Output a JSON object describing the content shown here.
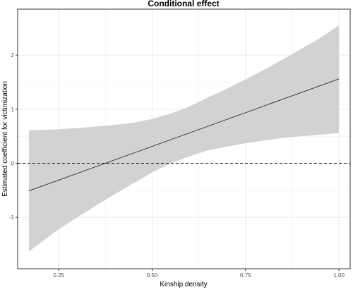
{
  "chart_data": {
    "type": "line",
    "title": "Conditional effect",
    "xlabel": "Kinship density",
    "ylabel": "Estimated coefficient for victimization",
    "xlim": [
      0.14,
      1.03
    ],
    "ylim": [
      -1.95,
      2.85
    ],
    "x_ticks": [
      {
        "value": 0.25,
        "label": "0.25"
      },
      {
        "value": 0.5,
        "label": "0.50"
      },
      {
        "value": 0.75,
        "label": "0.75"
      },
      {
        "value": 1.0,
        "label": "1.00"
      }
    ],
    "y_ticks": [
      {
        "value": -1,
        "label": "-1"
      },
      {
        "value": 0,
        "label": "0"
      },
      {
        "value": 1,
        "label": "1"
      },
      {
        "value": 2,
        "label": "2"
      }
    ],
    "grid": true,
    "reference_line": {
      "y": 0,
      "style": "dashed"
    },
    "series": [
      {
        "x": [
          0.17,
          1.0
        ],
        "y": [
          -0.51,
          1.56
        ]
      }
    ],
    "confidence_band": {
      "x": [
        0.17,
        0.25,
        0.3,
        0.35,
        0.4,
        0.45,
        0.5,
        0.55,
        0.6,
        0.65,
        0.7,
        0.75,
        0.8,
        0.85,
        0.9,
        0.95,
        1.0
      ],
      "lower": [
        -1.63,
        -1.22,
        -1.0,
        -0.78,
        -0.57,
        -0.37,
        -0.17,
        0.0,
        0.13,
        0.24,
        0.31,
        0.37,
        0.42,
        0.47,
        0.5,
        0.53,
        0.56
      ],
      "upper": [
        0.61,
        0.63,
        0.65,
        0.68,
        0.71,
        0.75,
        0.82,
        0.92,
        1.05,
        1.22,
        1.38,
        1.55,
        1.73,
        1.92,
        2.12,
        2.32,
        2.55
      ]
    },
    "colors": {
      "band": "#d2d2d2",
      "line": "#3a3a3a",
      "grid": "#ebebeb",
      "zero_line": "#222222",
      "panel_border": "#333333"
    }
  }
}
